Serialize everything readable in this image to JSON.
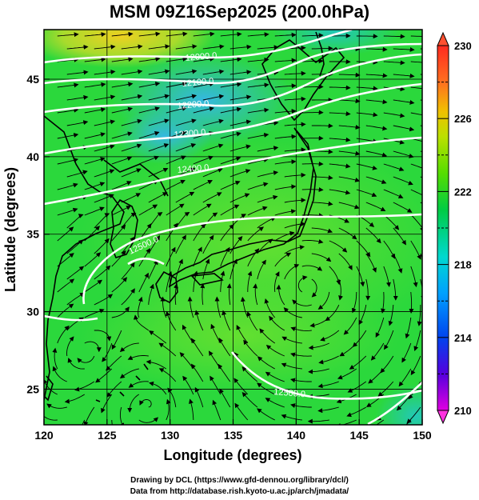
{
  "title": "MSM 09Z16Sep2025 (200.0hPa)",
  "xlabel": "Longitude (degrees)",
  "ylabel": "Latitude  (degrees)",
  "x_ticks": [
    "120",
    "125",
    "130",
    "135",
    "140",
    "145",
    "150"
  ],
  "y_ticks": [
    "25",
    "30",
    "35",
    "40",
    "45"
  ],
  "colorbar": {
    "ticks": [
      "210",
      "214",
      "218",
      "222",
      "226",
      "230"
    ],
    "min": 210,
    "max": 230,
    "colors": [
      "#e000e0",
      "#5500dd",
      "#0044ee",
      "#00a0ff",
      "#00d8d0",
      "#00cc44",
      "#55dd00",
      "#bbe000",
      "#f0c000",
      "#ff7020",
      "#ff2a20"
    ]
  },
  "contour_labels": [
    "12000.0",
    "12100.0",
    "12200.0",
    "12300.0",
    "12400.0",
    "12500.0",
    "12500.0"
  ],
  "credits": [
    "Drawing by DCL (https://www.gfd-dennou.org/library/dcl/)",
    "Data from http://database.rish.kyoto-u.ac.jp/arch/jmadata/"
  ],
  "colors": {
    "field_green": "#2bd83c",
    "field_light": "#58e236",
    "field_cyan": "#28c8b0",
    "field_yellow": "#e8d020",
    "contour": "#ffffff",
    "vector": "#000000"
  }
}
